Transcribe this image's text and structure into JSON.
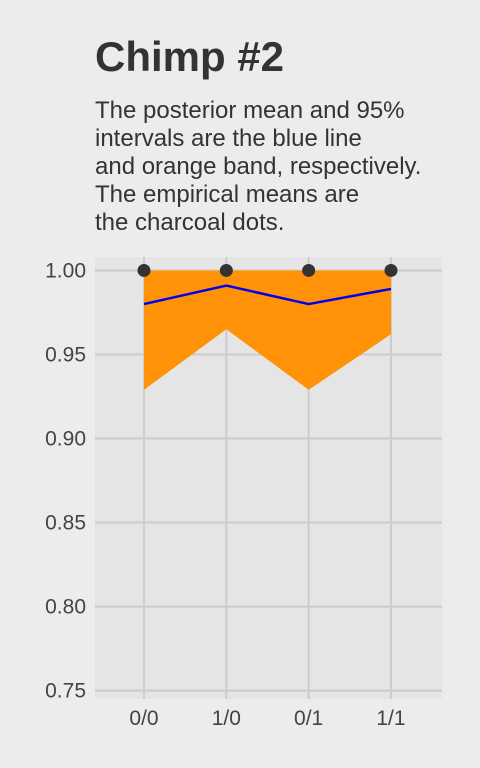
{
  "chart_data": {
    "type": "line",
    "title": "Chimp #2",
    "subtitle_lines": [
      "The posterior mean and 95%",
      "intervals are the blue line",
      "and orange band, respectively.",
      "The empirical means are",
      "the charcoal dots."
    ],
    "categories": [
      "0/0",
      "1/0",
      "0/1",
      "1/1"
    ],
    "y_ticks": [
      "0.75",
      "0.80",
      "0.85",
      "0.90",
      "0.95",
      "1.00"
    ],
    "ylim": [
      0.745,
      1.008
    ],
    "grid": true,
    "legend": "none",
    "series": [
      {
        "role": "posterior-mean-line",
        "values": [
          0.98,
          0.991,
          0.98,
          0.989
        ],
        "color": "#0000ee"
      },
      {
        "role": "interval-band",
        "lower": [
          0.929,
          0.965,
          0.929,
          0.962
        ],
        "upper": [
          1.0,
          1.0,
          1.0,
          1.0
        ],
        "color": "#ff9207"
      },
      {
        "role": "empirical-means-points",
        "values": [
          1.0,
          1.0,
          1.0,
          1.0
        ],
        "color": "#333333"
      }
    ],
    "colors": {
      "background": "#ececec",
      "panel": "#e5e5e5",
      "grid": "#cccccc"
    }
  }
}
